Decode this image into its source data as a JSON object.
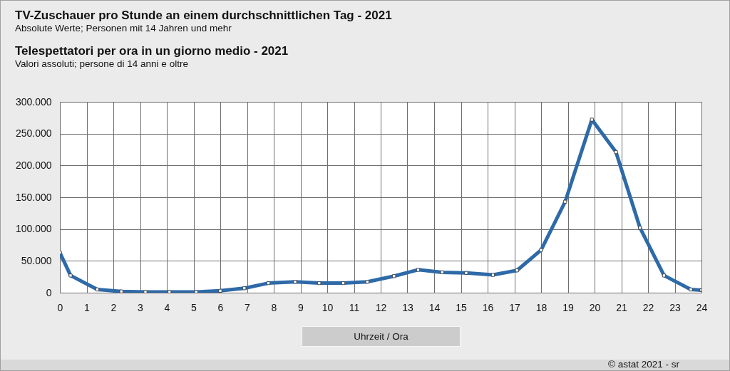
{
  "chart_data": {
    "type": "line",
    "title": "TV-Zuschauer pro Stunde an einem durchschnittlichen Tag - 2021",
    "subtitle": "Absolute Werte; Personen mit 14 Jahren und mehr",
    "xlabel": "Uhrzeit / Ora",
    "annotations": [
      "Telespettatori per ora in un giorno medio - 2021",
      "Valori assoluti; persone di 14 anni e oltre",
      "© astat 2021 - sr"
    ],
    "x": [
      0,
      0.4,
      1.4,
      2.3,
      3.2,
      4.1,
      5.1,
      6.0,
      6.9,
      7.8,
      8.8,
      9.7,
      10.6,
      11.5,
      12.5,
      13.4,
      14.3,
      15.2,
      16.2,
      17.1,
      18.0,
      18.9,
      19.9,
      20.8,
      21.7,
      22.6,
      23.6,
      24
    ],
    "series": [
      {
        "color": "#2e6aa8",
        "values": [
          63000,
          27000,
          5000,
          2000,
          1000,
          1000,
          1000,
          3000,
          7000,
          15000,
          17000,
          15000,
          15000,
          17000,
          26000,
          36000,
          32000,
          31000,
          28000,
          35000,
          67000,
          143000,
          272000,
          221000,
          102000,
          27000,
          5000,
          4000
        ]
      }
    ],
    "xlim": [
      0,
      24
    ],
    "xticks": [
      0,
      1,
      2,
      3,
      4,
      5,
      6,
      7,
      8,
      9,
      10,
      11,
      12,
      13,
      14,
      15,
      16,
      17,
      18,
      19,
      20,
      21,
      22,
      23,
      24
    ],
    "ylim": [
      0,
      300000
    ],
    "yticks": [
      0,
      {
        "value": 50000,
        "label": "50.000"
      },
      {
        "value": 100000,
        "label": "100.000"
      },
      {
        "value": 150000,
        "label": "150.000"
      },
      {
        "value": 200000,
        "label": "200.000"
      },
      {
        "value": 250000,
        "label": "250.000"
      },
      {
        "value": 300000,
        "label": "300.000"
      }
    ],
    "grid": true,
    "legend": false,
    "marker": "square",
    "line_style": "solid"
  }
}
